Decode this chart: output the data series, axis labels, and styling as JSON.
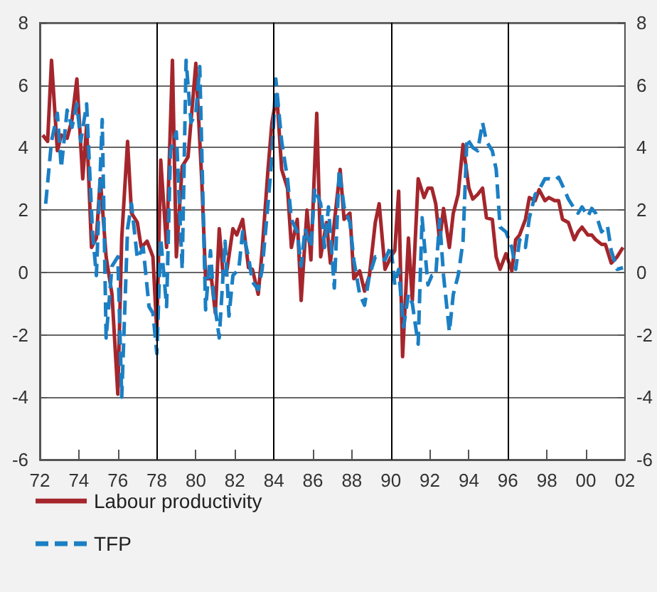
{
  "chart_data": {
    "type": "line",
    "xlim": [
      1972,
      2002
    ],
    "xticks": [
      {
        "value": 1972,
        "label": "72"
      },
      {
        "value": 1974,
        "label": "74"
      },
      {
        "value": 1976,
        "label": "76"
      },
      {
        "value": 1978,
        "label": "78"
      },
      {
        "value": 1980,
        "label": "80"
      },
      {
        "value": 1982,
        "label": "82"
      },
      {
        "value": 1984,
        "label": "84"
      },
      {
        "value": 1986,
        "label": "86"
      },
      {
        "value": 1988,
        "label": "88"
      },
      {
        "value": 1990,
        "label": "90"
      },
      {
        "value": 1992,
        "label": "92"
      },
      {
        "value": 1994,
        "label": "94"
      },
      {
        "value": 1996,
        "label": "96"
      },
      {
        "value": 1998,
        "label": "98"
      },
      {
        "value": 2000,
        "label": "00"
      },
      {
        "value": 2002,
        "label": "02"
      }
    ],
    "ylim": [
      -6,
      8
    ],
    "yticks": [
      -6,
      -4,
      -2,
      0,
      2,
      4,
      6,
      8
    ],
    "y2lim": [
      -6,
      8
    ],
    "y2ticks": [
      -6,
      -4,
      -2,
      0,
      2,
      4,
      6,
      8
    ],
    "grid": "y",
    "legend": "bottom left",
    "ref_lines": [
      {
        "axis": "x",
        "value": 1978,
        "color": "#000000"
      },
      {
        "axis": "x",
        "value": 1984,
        "color": "#000000"
      },
      {
        "axis": "x",
        "value": 1990,
        "color": "#000000"
      },
      {
        "axis": "x",
        "value": 1996,
        "color": "#000000"
      }
    ],
    "series": [
      {
        "name": "Labour productivity",
        "color": "#a4262c",
        "line_style": "solid",
        "x": [
          1972.15,
          1972.4,
          1972.6,
          1972.9,
          1973.1,
          1973.4,
          1973.65,
          1973.9,
          1974.2,
          1974.4,
          1974.65,
          1974.9,
          1975.1,
          1975.4,
          1975.7,
          1976.0,
          1976.2,
          1976.5,
          1976.7,
          1977.0,
          1977.2,
          1977.5,
          1977.8,
          1978.0,
          1978.2,
          1978.5,
          1978.8,
          1979.0,
          1979.3,
          1979.6,
          1979.8,
          1980.0,
          1980.3,
          1980.5,
          1980.8,
          1981.0,
          1981.2,
          1981.4,
          1981.6,
          1981.9,
          1982.1,
          1982.4,
          1982.7,
          1982.9,
          1983.2,
          1983.4,
          1983.7,
          1983.9,
          1984.15,
          1984.4,
          1984.7,
          1984.9,
          1985.2,
          1985.4,
          1985.7,
          1985.9,
          1986.2,
          1986.4,
          1986.7,
          1986.9,
          1987.1,
          1987.4,
          1987.6,
          1987.9,
          1988.1,
          1988.4,
          1988.65,
          1988.9,
          1989.2,
          1989.4,
          1989.7,
          1990.0,
          1990.2,
          1990.4,
          1990.6,
          1990.9,
          1991.1,
          1991.4,
          1991.7,
          1991.9,
          1992.1,
          1992.3,
          1992.5,
          1992.7,
          1993.0,
          1993.2,
          1993.45,
          1993.7,
          1994.0,
          1994.2,
          1994.45,
          1994.7,
          1994.9,
          1995.2,
          1995.4,
          1995.6,
          1995.9,
          1996.2,
          1996.4,
          1996.6,
          1996.9,
          1997.1,
          1997.4,
          1997.6,
          1997.9,
          1998.1,
          1998.4,
          1998.6,
          1998.8,
          1999.1,
          1999.4,
          1999.6,
          1999.8,
          2000.1,
          2000.3,
          2000.5,
          2000.8,
          2001.0,
          2001.3,
          2001.6,
          2001.9
        ],
        "values": [
          4.4,
          4.2,
          6.8,
          3.9,
          4.4,
          4.3,
          4.9,
          6.2,
          3.0,
          4.7,
          0.8,
          1.1,
          3.0,
          0.5,
          -0.7,
          -3.9,
          1.1,
          4.2,
          1.9,
          1.6,
          0.8,
          1.0,
          0.5,
          -1.9,
          3.6,
          0.8,
          6.8,
          0.5,
          3.4,
          3.7,
          5.2,
          6.7,
          3.0,
          -0.2,
          -0.2,
          -1.3,
          1.4,
          -0.1,
          0.1,
          1.4,
          1.2,
          1.7,
          0.15,
          0.1,
          -0.7,
          0.7,
          3.3,
          4.8,
          5.7,
          3.3,
          2.7,
          0.8,
          1.7,
          -0.9,
          2.0,
          0.4,
          5.1,
          0.5,
          1.6,
          0.3,
          1.6,
          3.3,
          1.7,
          1.9,
          -0.2,
          0.05,
          -0.6,
          -0.1,
          1.6,
          2.2,
          0.1,
          0.5,
          0.7,
          2.6,
          -2.7,
          1.1,
          -0.9,
          3.0,
          2.4,
          2.7,
          2.7,
          2.2,
          1.0,
          2.05,
          0.8,
          1.9,
          2.5,
          4.1,
          2.7,
          2.35,
          2.5,
          2.7,
          1.75,
          1.7,
          0.5,
          0.1,
          0.6,
          0.05,
          1.05,
          1.2,
          1.7,
          2.4,
          2.3,
          2.65,
          2.3,
          2.4,
          2.3,
          2.3,
          1.7,
          1.6,
          1.05,
          1.3,
          1.45,
          1.2,
          1.2,
          1.05,
          0.9,
          0.9,
          0.3,
          0.5,
          0.8
        ]
      },
      {
        "name": "TFP",
        "color": "#1b7fc4",
        "line_style": "dashed",
        "x": [
          1972.3,
          1972.6,
          1972.9,
          1973.1,
          1973.4,
          1973.65,
          1973.9,
          1974.1,
          1974.4,
          1974.7,
          1974.9,
          1975.2,
          1975.4,
          1975.7,
          1976.0,
          1976.2,
          1976.5,
          1976.7,
          1977.0,
          1977.3,
          1977.6,
          1977.8,
          1978.0,
          1978.2,
          1978.5,
          1978.7,
          1979.0,
          1979.3,
          1979.5,
          1979.75,
          1980.0,
          1980.2,
          1980.5,
          1980.75,
          1980.9,
          1981.2,
          1981.5,
          1981.7,
          1981.9,
          1982.2,
          1982.4,
          1982.7,
          1982.9,
          1983.2,
          1983.4,
          1983.7,
          1983.9,
          1984.1,
          1984.4,
          1984.7,
          1984.9,
          1985.2,
          1985.4,
          1985.6,
          1985.9,
          1986.1,
          1986.4,
          1986.6,
          1986.8,
          1987.1,
          1987.35,
          1987.6,
          1987.9,
          1988.1,
          1988.4,
          1988.65,
          1988.9,
          1989.2,
          1989.4,
          1989.7,
          1990.0,
          1990.2,
          1990.4,
          1990.65,
          1990.9,
          1991.1,
          1991.4,
          1991.6,
          1991.9,
          1992.1,
          1992.3,
          1992.5,
          1992.7,
          1993.0,
          1993.2,
          1993.45,
          1993.7,
          1993.9,
          1994.2,
          1994.45,
          1994.7,
          1994.9,
          1995.2,
          1995.4,
          1995.6,
          1995.9,
          1996.2,
          1996.4,
          1996.6,
          1996.9,
          1997.1,
          1997.4,
          1997.6,
          1997.9,
          1998.1,
          1998.4,
          1998.6,
          1998.9,
          1999.1,
          1999.4,
          1999.6,
          1999.8,
          2000.1,
          2000.3,
          2000.5,
          2000.8,
          2001.1,
          2001.3,
          2001.6,
          2001.9
        ],
        "values": [
          2.2,
          4.2,
          5.1,
          3.35,
          5.2,
          4.65,
          5.4,
          4.2,
          5.4,
          1.3,
          -0.1,
          4.9,
          -2.1,
          0.2,
          0.5,
          -4.0,
          1.4,
          2.2,
          0.45,
          0.8,
          -1.1,
          -1.3,
          -2.6,
          1.1,
          -1.1,
          3.9,
          4.5,
          0.1,
          6.8,
          4.8,
          5.1,
          6.6,
          -1.2,
          0.7,
          -0.7,
          -2.1,
          1.0,
          -1.4,
          -0.1,
          0.1,
          1.3,
          0.5,
          -0.3,
          -0.55,
          0.1,
          2.2,
          3.7,
          6.2,
          4.2,
          3.0,
          1.7,
          1.3,
          0.2,
          1.4,
          0.8,
          2.7,
          2.2,
          0.8,
          2.1,
          -0.5,
          3.3,
          2.1,
          1.6,
          0.4,
          -0.7,
          -1.05,
          -0.1,
          0.5,
          0.45,
          0.4,
          0.85,
          -0.4,
          0.1,
          -1.75,
          -0.7,
          -1.0,
          -2.3,
          1.75,
          -0.4,
          -0.1,
          -0.1,
          1.7,
          -0.1,
          -1.9,
          -0.7,
          -0.1,
          1.0,
          4.3,
          4.0,
          3.9,
          4.8,
          4.2,
          3.9,
          3.3,
          1.45,
          1.3,
          0.8,
          0.1,
          1.05,
          0.8,
          1.75,
          2.5,
          2.65,
          3.0,
          3.0,
          2.95,
          3.05,
          2.65,
          2.35,
          2.05,
          1.9,
          2.1,
          1.8,
          2.05,
          1.9,
          1.3,
          1.5,
          0.7,
          0.1,
          0.15
        ]
      }
    ]
  }
}
